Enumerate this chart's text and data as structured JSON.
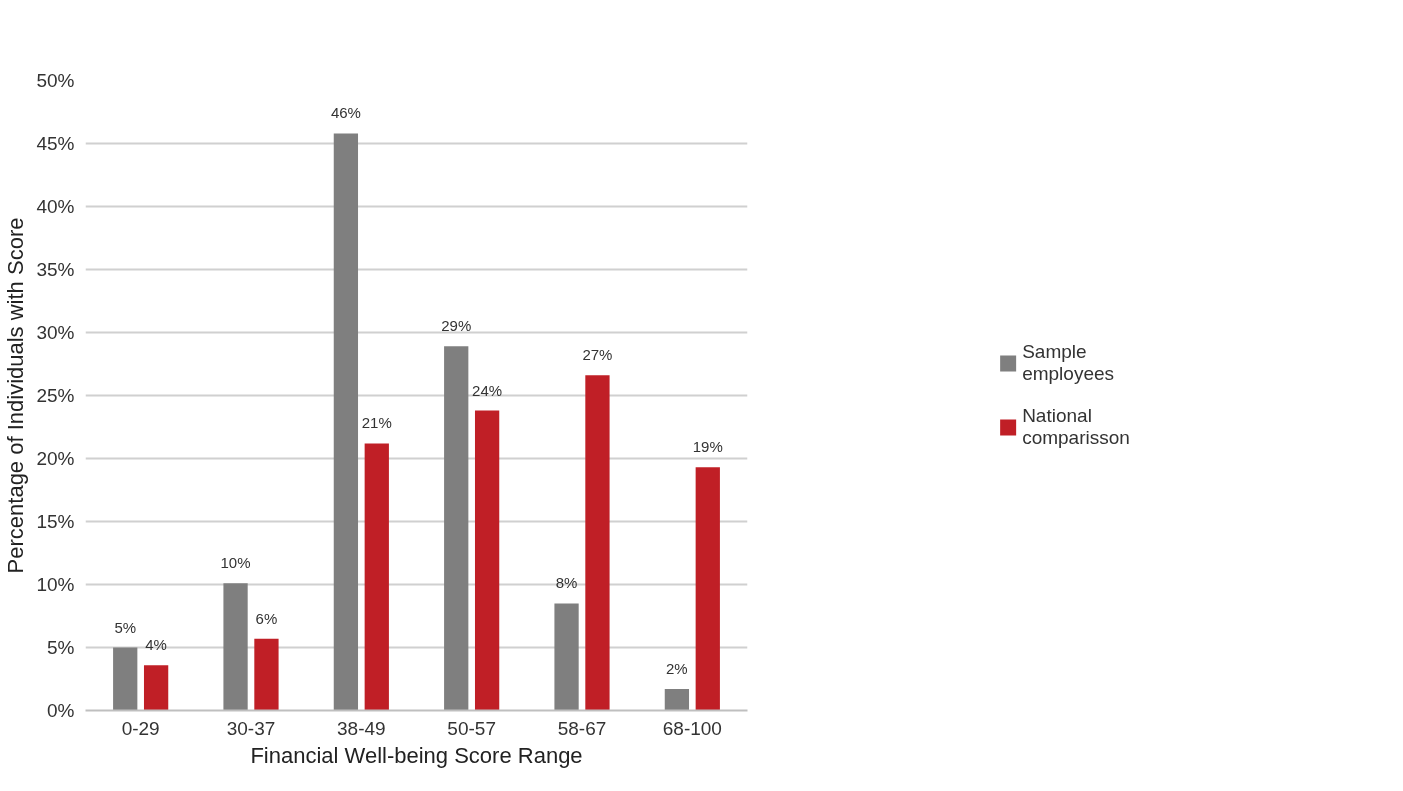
{
  "chart_data": {
    "type": "bar",
    "xlabel": "Financial Well-being Score Range",
    "ylabel": "Percentage of Individuals with Score",
    "categories": [
      "0-29",
      "30-37",
      "38-49",
      "50-57",
      "58-67",
      "68-100"
    ],
    "series": [
      {
        "name": "Sample employees",
        "color": "#7f7f7f",
        "values": [
          5.0,
          10.1,
          45.8,
          28.9,
          8.5,
          1.7
        ],
        "value_labels": [
          "5%",
          "10%",
          "46%",
          "29%",
          "8%",
          "2%"
        ]
      },
      {
        "name": "National comparisson",
        "color": "#c01f26",
        "values": [
          3.6,
          5.7,
          21.2,
          23.8,
          26.6,
          19.3
        ],
        "value_labels": [
          "4%",
          "6%",
          "21%",
          "24%",
          "27%",
          "19%"
        ]
      }
    ],
    "ylim": [
      0,
      50
    ],
    "yticks": [
      {
        "value": 0,
        "label": "0%"
      },
      {
        "value": 5,
        "label": "5%"
      },
      {
        "value": 10,
        "label": "10%"
      },
      {
        "value": 15,
        "label": "15%"
      },
      {
        "value": 20,
        "label": "20%"
      },
      {
        "value": 25,
        "label": "25%"
      },
      {
        "value": 30,
        "label": "30%"
      },
      {
        "value": 35,
        "label": "35%"
      },
      {
        "value": 40,
        "label": "40%"
      },
      {
        "value": 45,
        "label": "45%"
      },
      {
        "value": 50,
        "label": "50%"
      }
    ],
    "grid": "y",
    "legend": "right"
  }
}
